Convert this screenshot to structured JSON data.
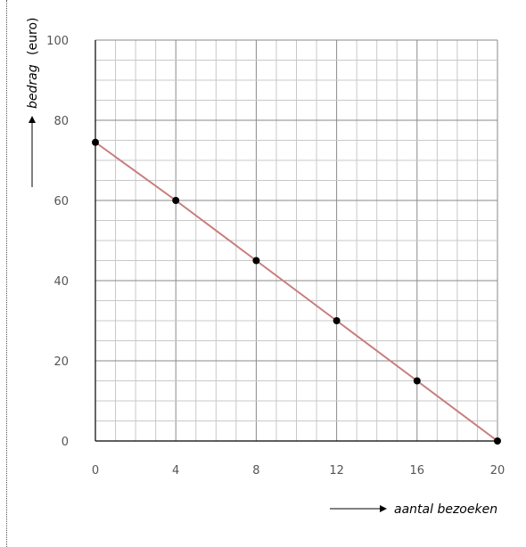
{
  "chart_data": {
    "type": "line",
    "title": "",
    "xlabel": "aantal bezoeken",
    "ylabel": "bedrag",
    "ylabel_unit": "(euro)",
    "xlim": [
      0,
      20
    ],
    "ylim": [
      0,
      100
    ],
    "x_ticks": [
      0,
      4,
      8,
      12,
      16,
      20
    ],
    "y_ticks": [
      0,
      20,
      40,
      60,
      80,
      100
    ],
    "x_minor_step": 1,
    "y_minor_step": 5,
    "grid": true,
    "legend": "none",
    "line_color": "#c87d7d",
    "marker_color": "#000000",
    "series": [
      {
        "x": [
          0,
          4,
          8,
          12,
          16,
          20
        ],
        "y": [
          74.5,
          60,
          45,
          30,
          15,
          0
        ]
      }
    ]
  }
}
